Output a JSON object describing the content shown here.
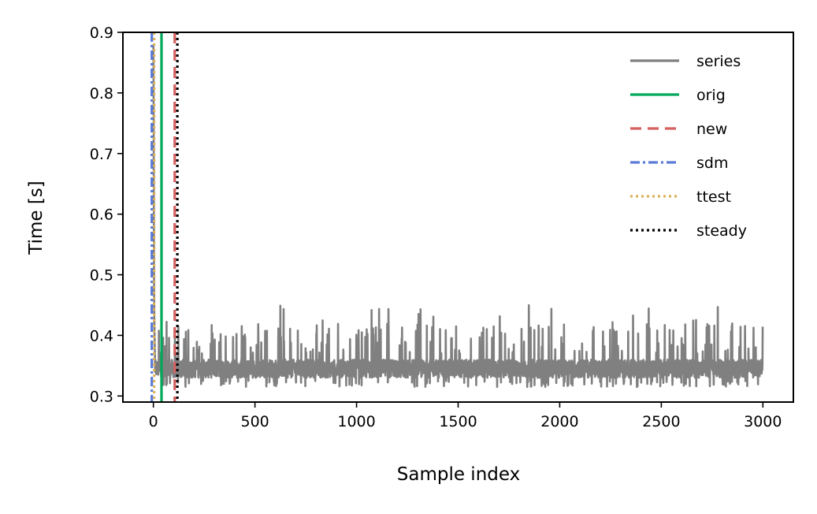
{
  "chart_data": {
    "type": "line",
    "title": "",
    "xlabel": "Sample index",
    "ylabel": "Time [s]",
    "xlim": [
      -150,
      3150
    ],
    "ylim": [
      0.29,
      0.9
    ],
    "xticks": [
      0,
      500,
      1000,
      1500,
      2000,
      2500,
      3000
    ],
    "xtick_labels": [
      "0",
      "500",
      "1000",
      "1500",
      "2000",
      "2500",
      "3000"
    ],
    "yticks": [
      0.3,
      0.4,
      0.5,
      0.6,
      0.7,
      0.8,
      0.9
    ],
    "ytick_labels": [
      "0.3",
      "0.4",
      "0.5",
      "0.6",
      "0.7",
      "0.8",
      "0.9"
    ],
    "grid": false,
    "legend_position": "top-right",
    "series": [
      {
        "name": "series",
        "color": "#808080",
        "style": "solid",
        "n_samples": 3000,
        "baseline": 0.345,
        "approx_range": [
          0.32,
          0.45
        ],
        "initial_values": [
          0.88,
          0.8,
          0.62,
          0.5,
          0.45,
          0.42,
          0.4,
          0.38,
          0.36
        ]
      }
    ],
    "vlines": [
      {
        "name": "orig",
        "x": 40,
        "color": "#00a65a",
        "style": "solid"
      },
      {
        "name": "new",
        "x": 105,
        "color": "#d65f5f",
        "style": "dashed"
      },
      {
        "name": "sdm",
        "x": 0,
        "color": "#5b7bd8",
        "style": "dashdot"
      },
      {
        "name": "ttest",
        "x": 0,
        "color": "#d9b25a",
        "style": "dotted"
      },
      {
        "name": "steady",
        "x": 118,
        "color": "#000000",
        "style": "dotted"
      }
    ],
    "legend": [
      "series",
      "orig",
      "new",
      "sdm",
      "ttest",
      "steady"
    ]
  }
}
